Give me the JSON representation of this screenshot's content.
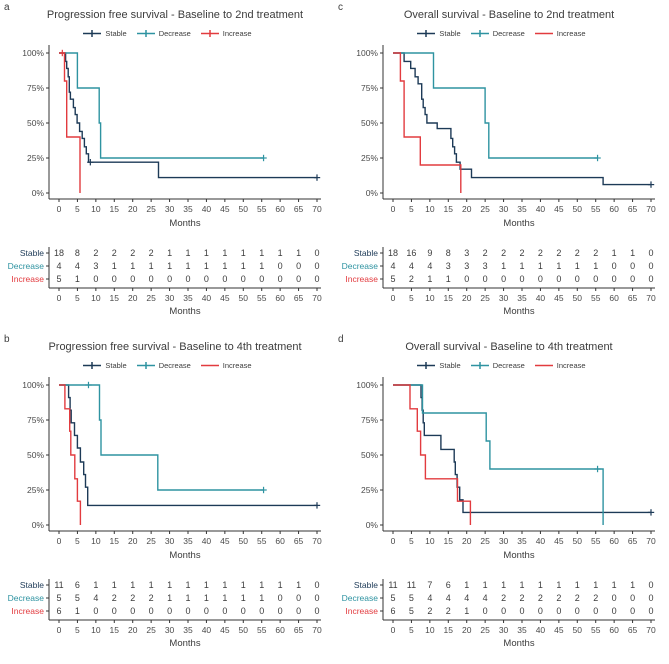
{
  "figure": {
    "x_axis_label": "Months",
    "xticks": [
      0,
      5,
      10,
      15,
      20,
      25,
      30,
      35,
      40,
      45,
      50,
      55,
      60,
      65,
      70
    ],
    "yticks": [
      "100%",
      "75%",
      "50%",
      "25%",
      "0%"
    ],
    "ytick_values": [
      100,
      75,
      50,
      25,
      0
    ],
    "colors": {
      "stable": "#1d3a57",
      "decrease": "#2e93a1",
      "increase": "#e23b3f",
      "axis": "#333333",
      "text": "#3c3c3c",
      "tick_text": "#4a4a4a"
    }
  },
  "chart_data": [
    {
      "letter": "a",
      "type": "line",
      "subtype": "kaplan-meier-step",
      "title": "Progression free survival - Baseline to 2nd treatment",
      "xlabel": "Months",
      "ylabel": "",
      "xlim": [
        0,
        70
      ],
      "ylim": [
        0,
        100
      ],
      "grid": false,
      "legend_position": "top",
      "series": [
        {
          "name": "Stable",
          "color": "#1d3a57",
          "legend_plus": true,
          "steps": [
            [
              0,
              100
            ],
            [
              1.8,
              94
            ],
            [
              2.1,
              89
            ],
            [
              2.5,
              83
            ],
            [
              2.8,
              72
            ],
            [
              3.1,
              67
            ],
            [
              3.9,
              61
            ],
            [
              4.4,
              56
            ],
            [
              4.9,
              50
            ],
            [
              5.6,
              44
            ],
            [
              6.3,
              39
            ],
            [
              6.9,
              33
            ],
            [
              7.4,
              28
            ],
            [
              8,
              22
            ],
            [
              27,
              11
            ]
          ],
          "end": 70,
          "censors": [
            [
              8.5,
              22
            ],
            [
              70,
              11
            ]
          ]
        },
        {
          "name": "Decrease",
          "color": "#2e93a1",
          "legend_plus": true,
          "steps": [
            [
              0,
              100
            ],
            [
              5,
              75
            ],
            [
              10.9,
              50
            ],
            [
              11.3,
              25
            ]
          ],
          "end": 55.5,
          "censors": [
            [
              55.5,
              25
            ]
          ]
        },
        {
          "name": "Increase",
          "color": "#e23b3f",
          "legend_plus": true,
          "steps": [
            [
              0,
              100
            ],
            [
              1.5,
              80
            ],
            [
              2.1,
              40
            ],
            [
              5.7,
              0
            ]
          ],
          "end": 5.7,
          "censors": [
            [
              0.9,
              100
            ]
          ]
        }
      ],
      "risk_table": {
        "months": [
          0,
          5,
          10,
          15,
          20,
          25,
          30,
          35,
          40,
          45,
          50,
          55,
          60,
          65,
          70
        ],
        "rows": [
          {
            "name": "Stable",
            "color": "#1d3a57",
            "values": [
              18,
              8,
              2,
              2,
              2,
              2,
              1,
              1,
              1,
              1,
              1,
              1,
              1,
              1,
              0
            ]
          },
          {
            "name": "Decrease",
            "color": "#2e93a1",
            "values": [
              4,
              4,
              3,
              1,
              1,
              1,
              1,
              1,
              1,
              1,
              1,
              1,
              0,
              0,
              0
            ]
          },
          {
            "name": "Increase",
            "color": "#e23b3f",
            "values": [
              5,
              1,
              0,
              0,
              0,
              0,
              0,
              0,
              0,
              0,
              0,
              0,
              0,
              0,
              0
            ]
          }
        ]
      }
    },
    {
      "letter": "c",
      "type": "line",
      "subtype": "kaplan-meier-step",
      "title": "Overall survival - Baseline to 2nd treatment",
      "xlabel": "Months",
      "ylabel": "",
      "xlim": [
        0,
        70
      ],
      "ylim": [
        0,
        100
      ],
      "grid": false,
      "legend_position": "top",
      "series": [
        {
          "name": "Stable",
          "color": "#1d3a57",
          "legend_plus": true,
          "steps": [
            [
              0,
              100
            ],
            [
              3,
              94
            ],
            [
              4.8,
              89
            ],
            [
              6,
              83
            ],
            [
              6.8,
              78
            ],
            [
              7.8,
              67
            ],
            [
              8.2,
              61
            ],
            [
              8.7,
              56
            ],
            [
              9.2,
              50
            ],
            [
              12,
              46
            ],
            [
              15.7,
              39
            ],
            [
              16.2,
              33
            ],
            [
              16.7,
              28
            ],
            [
              17.2,
              22
            ],
            [
              18.2,
              17
            ],
            [
              21.3,
              11
            ],
            [
              57,
              6
            ]
          ],
          "end": 70,
          "censors": [
            [
              70,
              6
            ]
          ]
        },
        {
          "name": "Decrease",
          "color": "#2e93a1",
          "legend_plus": true,
          "steps": [
            [
              0,
              100
            ],
            [
              11,
              75
            ],
            [
              25,
              50
            ],
            [
              26,
              25
            ]
          ],
          "end": 55.5,
          "censors": [
            [
              55.5,
              25
            ]
          ]
        },
        {
          "name": "Increase",
          "color": "#e23b3f",
          "legend_plus": false,
          "steps": [
            [
              0,
              100
            ],
            [
              2,
              80
            ],
            [
              3,
              40
            ],
            [
              7.4,
              20
            ],
            [
              18.4,
              0
            ]
          ],
          "end": 18.4,
          "censors": []
        }
      ],
      "risk_table": {
        "months": [
          0,
          5,
          10,
          15,
          20,
          25,
          30,
          35,
          40,
          45,
          50,
          55,
          60,
          65,
          70
        ],
        "rows": [
          {
            "name": "Stable",
            "color": "#1d3a57",
            "values": [
              18,
              16,
              9,
              8,
              3,
              2,
              2,
              2,
              2,
              2,
              2,
              2,
              1,
              1,
              0
            ]
          },
          {
            "name": "Decrease",
            "color": "#2e93a1",
            "values": [
              4,
              4,
              4,
              3,
              3,
              3,
              1,
              1,
              1,
              1,
              1,
              1,
              0,
              0,
              0
            ]
          },
          {
            "name": "Increase",
            "color": "#e23b3f",
            "values": [
              5,
              2,
              1,
              1,
              0,
              0,
              0,
              0,
              0,
              0,
              0,
              0,
              0,
              0,
              0
            ]
          }
        ]
      }
    },
    {
      "letter": "b",
      "type": "line",
      "subtype": "kaplan-meier-step",
      "title": "Progression free survival - Baseline to 4th treatment",
      "xlabel": "Months",
      "ylabel": "",
      "xlim": [
        0,
        70
      ],
      "ylim": [
        0,
        100
      ],
      "grid": false,
      "legend_position": "top",
      "series": [
        {
          "name": "Stable",
          "color": "#1d3a57",
          "legend_plus": true,
          "steps": [
            [
              0,
              100
            ],
            [
              2.6,
              91
            ],
            [
              3,
              82
            ],
            [
              3.3,
              73
            ],
            [
              4.2,
              64
            ],
            [
              5,
              55
            ],
            [
              5.8,
              45
            ],
            [
              6.7,
              36
            ],
            [
              7.2,
              27
            ],
            [
              7.8,
              14
            ]
          ],
          "end": 70,
          "censors": [
            [
              70,
              14
            ]
          ]
        },
        {
          "name": "Decrease",
          "color": "#2e93a1",
          "legend_plus": true,
          "steps": [
            [
              0,
              100
            ],
            [
              11,
              75
            ],
            [
              11.4,
              50
            ],
            [
              26.8,
              25
            ]
          ],
          "end": 55.5,
          "censors": [
            [
              8,
              100
            ],
            [
              55.5,
              25
            ]
          ]
        },
        {
          "name": "Increase",
          "color": "#e23b3f",
          "legend_plus": false,
          "steps": [
            [
              0,
              100
            ],
            [
              1.6,
              83
            ],
            [
              2.9,
              67
            ],
            [
              3.2,
              50
            ],
            [
              4.3,
              33
            ],
            [
              5,
              17
            ],
            [
              5.8,
              0
            ]
          ],
          "end": 5.8,
          "censors": []
        }
      ],
      "risk_table": {
        "months": [
          0,
          5,
          10,
          15,
          20,
          25,
          30,
          35,
          40,
          45,
          50,
          55,
          60,
          65,
          70
        ],
        "rows": [
          {
            "name": "Stable",
            "color": "#1d3a57",
            "values": [
              11,
              6,
              1,
              1,
              1,
              1,
              1,
              1,
              1,
              1,
              1,
              1,
              1,
              1,
              0
            ]
          },
          {
            "name": "Decrease",
            "color": "#2e93a1",
            "values": [
              5,
              5,
              4,
              2,
              2,
              2,
              1,
              1,
              1,
              1,
              1,
              1,
              0,
              0,
              0
            ]
          },
          {
            "name": "Increase",
            "color": "#e23b3f",
            "values": [
              6,
              1,
              0,
              0,
              0,
              0,
              0,
              0,
              0,
              0,
              0,
              0,
              0,
              0,
              0
            ]
          }
        ]
      }
    },
    {
      "letter": "d",
      "type": "line",
      "subtype": "kaplan-meier-step",
      "title": "Overall survival - Baseline to 4th treatment",
      "xlabel": "Months",
      "ylabel": "",
      "xlim": [
        0,
        70
      ],
      "ylim": [
        0,
        100
      ],
      "grid": false,
      "legend_position": "top",
      "series": [
        {
          "name": "Stable",
          "color": "#1d3a57",
          "legend_plus": true,
          "steps": [
            [
              0,
              100
            ],
            [
              7.6,
              91
            ],
            [
              7.9,
              82
            ],
            [
              8.2,
              73
            ],
            [
              8.5,
              64
            ],
            [
              13,
              54
            ],
            [
              16.6,
              45
            ],
            [
              16.9,
              36
            ],
            [
              17.4,
              27
            ],
            [
              18.1,
              18
            ],
            [
              19,
              9
            ]
          ],
          "end": 70,
          "censors": [
            [
              70,
              9
            ]
          ]
        },
        {
          "name": "Decrease",
          "color": "#2e93a1",
          "legend_plus": true,
          "steps": [
            [
              0,
              100
            ],
            [
              8,
              80
            ],
            [
              25.3,
              60
            ],
            [
              26.3,
              40
            ],
            [
              57,
              0
            ]
          ],
          "end": 57,
          "censors": [
            [
              55.5,
              40
            ]
          ]
        },
        {
          "name": "Increase",
          "color": "#e23b3f",
          "legend_plus": false,
          "steps": [
            [
              0,
              100
            ],
            [
              4.6,
              83
            ],
            [
              6.6,
              67
            ],
            [
              7.5,
              50
            ],
            [
              8.8,
              33
            ],
            [
              17.5,
              17
            ],
            [
              21,
              0
            ]
          ],
          "end": 21,
          "censors": []
        }
      ],
      "risk_table": {
        "months": [
          0,
          5,
          10,
          15,
          20,
          25,
          30,
          35,
          40,
          45,
          50,
          55,
          60,
          65,
          70
        ],
        "rows": [
          {
            "name": "Stable",
            "color": "#1d3a57",
            "values": [
              11,
              11,
              7,
              6,
              1,
              1,
              1,
              1,
              1,
              1,
              1,
              1,
              1,
              1,
              0
            ]
          },
          {
            "name": "Decrease",
            "color": "#2e93a1",
            "values": [
              5,
              5,
              4,
              4,
              4,
              4,
              2,
              2,
              2,
              2,
              2,
              2,
              0,
              0,
              0
            ]
          },
          {
            "name": "Increase",
            "color": "#e23b3f",
            "values": [
              6,
              5,
              2,
              2,
              1,
              0,
              0,
              0,
              0,
              0,
              0,
              0,
              0,
              0,
              0
            ]
          }
        ]
      }
    }
  ]
}
